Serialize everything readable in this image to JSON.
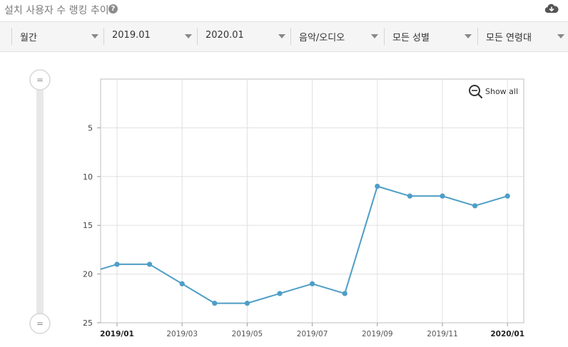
{
  "header": {
    "title": "설치 사용자 수 랭킹 추이",
    "help_icon": "?",
    "download_icon": "cloud-download-icon"
  },
  "filters": [
    {
      "label": "월간"
    },
    {
      "label": "2019.01"
    },
    {
      "label": "2020.01"
    },
    {
      "label": "음악/오디오"
    },
    {
      "label": "모든 성별"
    },
    {
      "label": "모든 연령대"
    }
  ],
  "zoom": {
    "label": "Show all",
    "handle_glyph": "="
  },
  "colors": {
    "line": "#4e9ec6",
    "grid": "#e0e0e0",
    "axis": "#9a9a9a"
  },
  "chart_data": {
    "type": "line",
    "y_axis": {
      "reversed": true,
      "range": [
        0,
        25
      ],
      "ticks": [
        5,
        10,
        15,
        20,
        25
      ]
    },
    "x_axis": {
      "ticks": [
        "2019/01",
        "2019/03",
        "2019/05",
        "2019/07",
        "2019/09",
        "2019/11",
        "2020/01"
      ],
      "bold_ticks": [
        "2019/01",
        "2020/01"
      ]
    },
    "grid": true,
    "series": [
      {
        "x": [
          "2018/12",
          "2019/01",
          "2019/02",
          "2019/03",
          "2019/04",
          "2019/05",
          "2019/06",
          "2019/07",
          "2019/08",
          "2019/09",
          "2019/10",
          "2019/11",
          "2019/12",
          "2020/01"
        ],
        "values": [
          20,
          19,
          19,
          21,
          23,
          23,
          22,
          21,
          22,
          11,
          12,
          12,
          13,
          12
        ]
      }
    ]
  }
}
